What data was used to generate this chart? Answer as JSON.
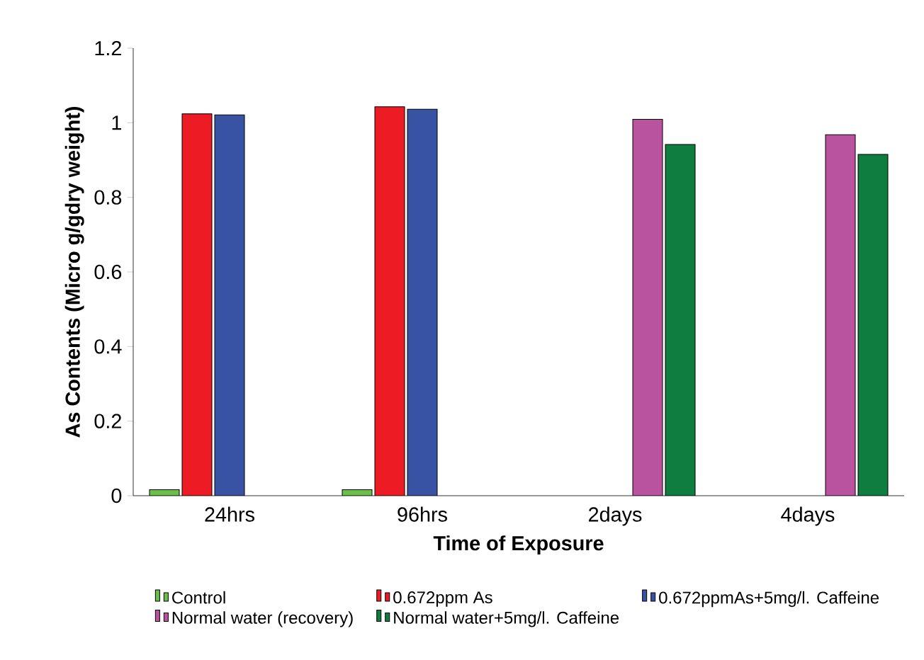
{
  "chart_data": {
    "type": "bar",
    "xlabel": "Time of Exposure",
    "ylabel": "As Contents (Micro g/gdry weight)",
    "categories": [
      "24hrs",
      "96hrs",
      "2days",
      "4days"
    ],
    "series": [
      {
        "name": "Control",
        "color": "#6cc04a",
        "values": [
          0.016,
          0.016,
          null,
          null
        ]
      },
      {
        "name": "0.672ppm As",
        "color": "#ed1c24",
        "values": [
          1.024,
          1.043,
          null,
          null
        ]
      },
      {
        "name": "0.672ppmAs+5mg/l. Caffeine",
        "color": "#3853a4",
        "values": [
          1.021,
          1.036,
          null,
          null
        ]
      },
      {
        "name": "Normal water (recovery)",
        "color": "#b9529f",
        "values": [
          null,
          null,
          1.009,
          0.968
        ]
      },
      {
        "name": "Normal water+5mg/l. Caffeine",
        "color": "#0e7d3f",
        "values": [
          null,
          null,
          0.942,
          0.915
        ]
      }
    ],
    "ylim": [
      0,
      1.2
    ],
    "yticks": [
      0,
      0.2,
      0.4,
      0.6,
      0.8,
      1,
      1.2
    ],
    "legend": "bottom",
    "grid": false
  }
}
